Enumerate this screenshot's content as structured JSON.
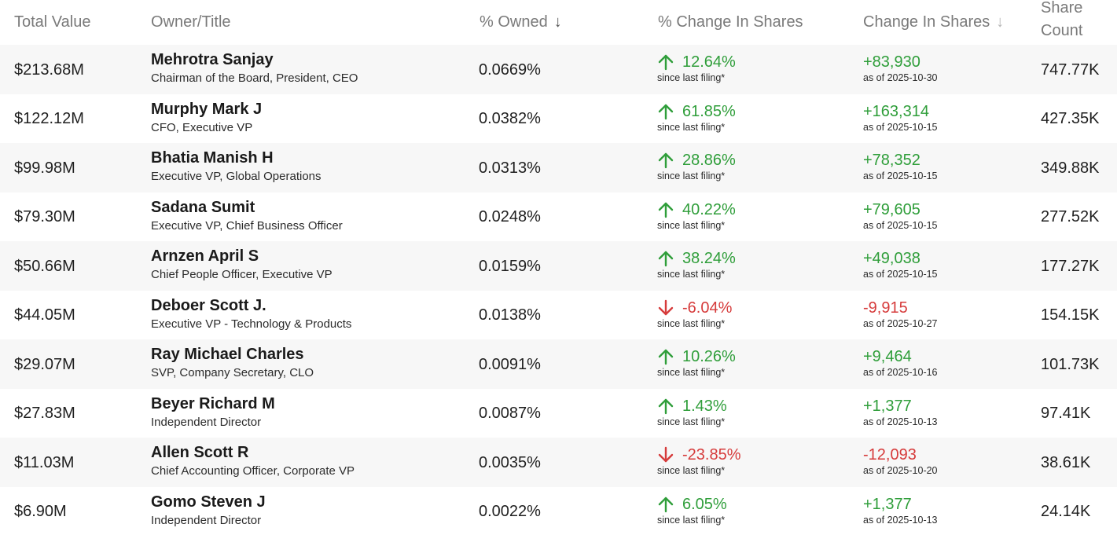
{
  "colors": {
    "positive": "#2f9e3a",
    "negative": "#d63b3b",
    "header_text": "#7a7a7a",
    "row_shade": "#f7f7f7"
  },
  "header": {
    "total_value": "Total Value",
    "owner_title": "Owner/Title",
    "pct_owned": "% Owned",
    "pct_change_shares": "% Change In Shares",
    "change_in_shares": "Change In Shares",
    "share_count": "Share Count",
    "sort_icon_active": "arrow-down-icon",
    "sort_icon_inactive": "arrow-down-icon"
  },
  "rows": [
    {
      "total_value": "$213.68M",
      "name": "Mehrotra Sanjay",
      "title": "Chairman of the Board, President, CEO",
      "pct_owned": "0.0669%",
      "direction": "up",
      "pct_change": "12.64%",
      "pct_sub": "since last filing*",
      "change": "+83,930",
      "change_date": "as of 2025-10-30",
      "share_count": "747.77K"
    },
    {
      "total_value": "$122.12M",
      "name": "Murphy Mark J",
      "title": "CFO, Executive VP",
      "pct_owned": "0.0382%",
      "direction": "up",
      "pct_change": "61.85%",
      "pct_sub": "since last filing*",
      "change": "+163,314",
      "change_date": "as of 2025-10-15",
      "share_count": "427.35K"
    },
    {
      "total_value": "$99.98M",
      "name": "Bhatia Manish H",
      "title": "Executive VP, Global Operations",
      "pct_owned": "0.0313%",
      "direction": "up",
      "pct_change": "28.86%",
      "pct_sub": "since last filing*",
      "change": "+78,352",
      "change_date": "as of 2025-10-15",
      "share_count": "349.88K"
    },
    {
      "total_value": "$79.30M",
      "name": "Sadana Sumit",
      "title": "Executive VP, Chief Business Officer",
      "pct_owned": "0.0248%",
      "direction": "up",
      "pct_change": "40.22%",
      "pct_sub": "since last filing*",
      "change": "+79,605",
      "change_date": "as of 2025-10-15",
      "share_count": "277.52K"
    },
    {
      "total_value": "$50.66M",
      "name": "Arnzen April S",
      "title": "Chief People Officer, Executive VP",
      "pct_owned": "0.0159%",
      "direction": "up",
      "pct_change": "38.24%",
      "pct_sub": "since last filing*",
      "change": "+49,038",
      "change_date": "as of 2025-10-15",
      "share_count": "177.27K"
    },
    {
      "total_value": "$44.05M",
      "name": "Deboer Scott J.",
      "title": "Executive VP - Technology & Products",
      "pct_owned": "0.0138%",
      "direction": "down",
      "pct_change": "-6.04%",
      "pct_sub": "since last filing*",
      "change": "-9,915",
      "change_date": "as of 2025-10-27",
      "share_count": "154.15K"
    },
    {
      "total_value": "$29.07M",
      "name": "Ray Michael Charles",
      "title": "SVP, Company Secretary, CLO",
      "pct_owned": "0.0091%",
      "direction": "up",
      "pct_change": "10.26%",
      "pct_sub": "since last filing*",
      "change": "+9,464",
      "change_date": "as of 2025-10-16",
      "share_count": "101.73K"
    },
    {
      "total_value": "$27.83M",
      "name": "Beyer Richard M",
      "title": "Independent Director",
      "pct_owned": "0.0087%",
      "direction": "up",
      "pct_change": "1.43%",
      "pct_sub": "since last filing*",
      "change": "+1,377",
      "change_date": "as of 2025-10-13",
      "share_count": "97.41K"
    },
    {
      "total_value": "$11.03M",
      "name": "Allen Scott R",
      "title": "Chief Accounting Officer, Corporate VP",
      "pct_owned": "0.0035%",
      "direction": "down",
      "pct_change": "-23.85%",
      "pct_sub": "since last filing*",
      "change": "-12,093",
      "change_date": "as of 2025-10-20",
      "share_count": "38.61K"
    },
    {
      "total_value": "$6.90M",
      "name": "Gomo Steven J",
      "title": "Independent Director",
      "pct_owned": "0.0022%",
      "direction": "up",
      "pct_change": "6.05%",
      "pct_sub": "since last filing*",
      "change": "+1,377",
      "change_date": "as of 2025-10-13",
      "share_count": "24.14K"
    }
  ]
}
